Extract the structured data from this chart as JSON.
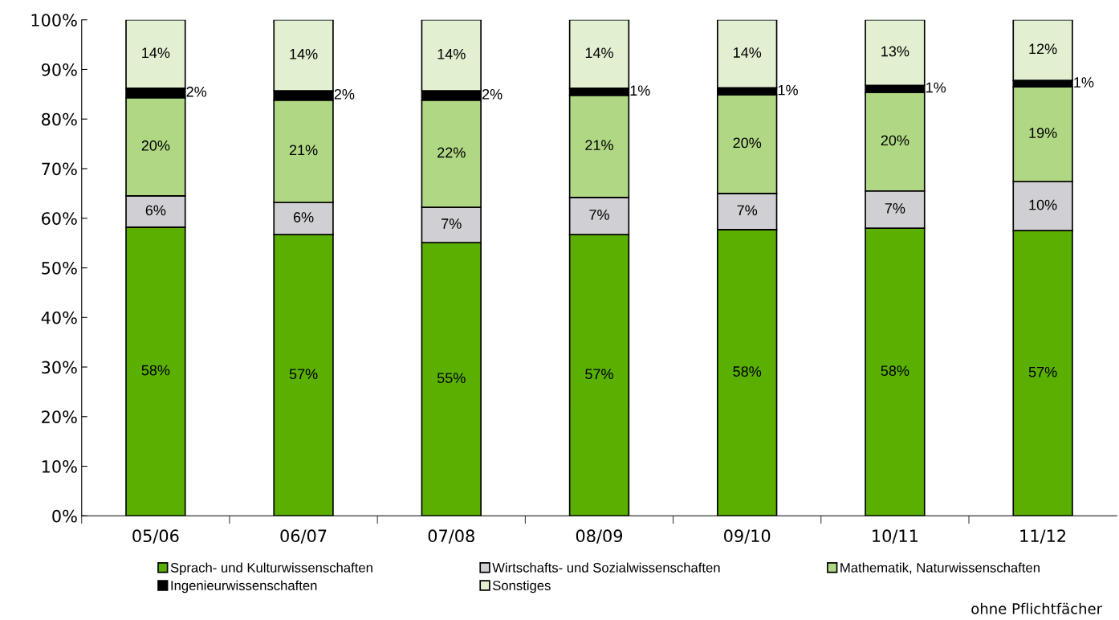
{
  "chart_data": {
    "type": "bar",
    "stacked": true,
    "categories": [
      "05/06",
      "06/07",
      "07/08",
      "08/09",
      "09/10",
      "10/11",
      "11/12"
    ],
    "series": [
      {
        "name": "Sprach- und Kulturwissenschaften",
        "color": "#5aaf00",
        "values": [
          58.2,
          56.7,
          55.1,
          56.7,
          57.7,
          58.0,
          57.5
        ],
        "value_labels": [
          "58%",
          "57%",
          "55%",
          "57%",
          "58%",
          "58%",
          "57%"
        ]
      },
      {
        "name": "Wirtschafts- und Sozialwissenschaften",
        "color": "#d0d0d4",
        "values": [
          6.3,
          6.5,
          7.1,
          7.5,
          7.3,
          7.5,
          9.9
        ],
        "value_labels": [
          "6%",
          "6%",
          "7%",
          "7%",
          "7%",
          "7%",
          "10%"
        ]
      },
      {
        "name": "Mathematik, Naturwissenschaften",
        "color": "#b0d884",
        "values": [
          19.8,
          20.6,
          21.6,
          20.6,
          19.9,
          19.9,
          19.1
        ],
        "value_labels": [
          "20%",
          "21%",
          "22%",
          "21%",
          "20%",
          "20%",
          "19%"
        ]
      },
      {
        "name": "Ingenieurwissenschaften",
        "color": "#000000",
        "values": [
          1.9,
          1.9,
          1.9,
          1.4,
          1.4,
          1.4,
          1.3
        ],
        "value_labels": [
          "2%",
          "2%",
          "2%",
          "1%",
          "1%",
          "1%",
          "1%"
        ]
      },
      {
        "name": "Sonstiges",
        "color": "#e2efd0",
        "values": [
          13.8,
          14.3,
          14.3,
          13.8,
          13.7,
          13.2,
          12.2
        ],
        "value_labels": [
          "14%",
          "14%",
          "14%",
          "14%",
          "14%",
          "13%",
          "12%"
        ]
      }
    ],
    "ylim": [
      0,
      100
    ],
    "yticks": [
      {
        "value": 0,
        "label": "0%"
      },
      {
        "value": 10,
        "label": "10%"
      },
      {
        "value": 20,
        "label": "20%"
      },
      {
        "value": 30,
        "label": "30%"
      },
      {
        "value": 40,
        "label": "40%"
      },
      {
        "value": 50,
        "label": "50%"
      },
      {
        "value": 60,
        "label": "60%"
      },
      {
        "value": 70,
        "label": "70%"
      },
      {
        "value": 80,
        "label": "80%"
      },
      {
        "value": 90,
        "label": "90%"
      },
      {
        "value": 100,
        "label": "100%"
      }
    ],
    "grid": false,
    "legend": "bottom",
    "annotations": [
      "ohne Pflichtfächer"
    ]
  }
}
